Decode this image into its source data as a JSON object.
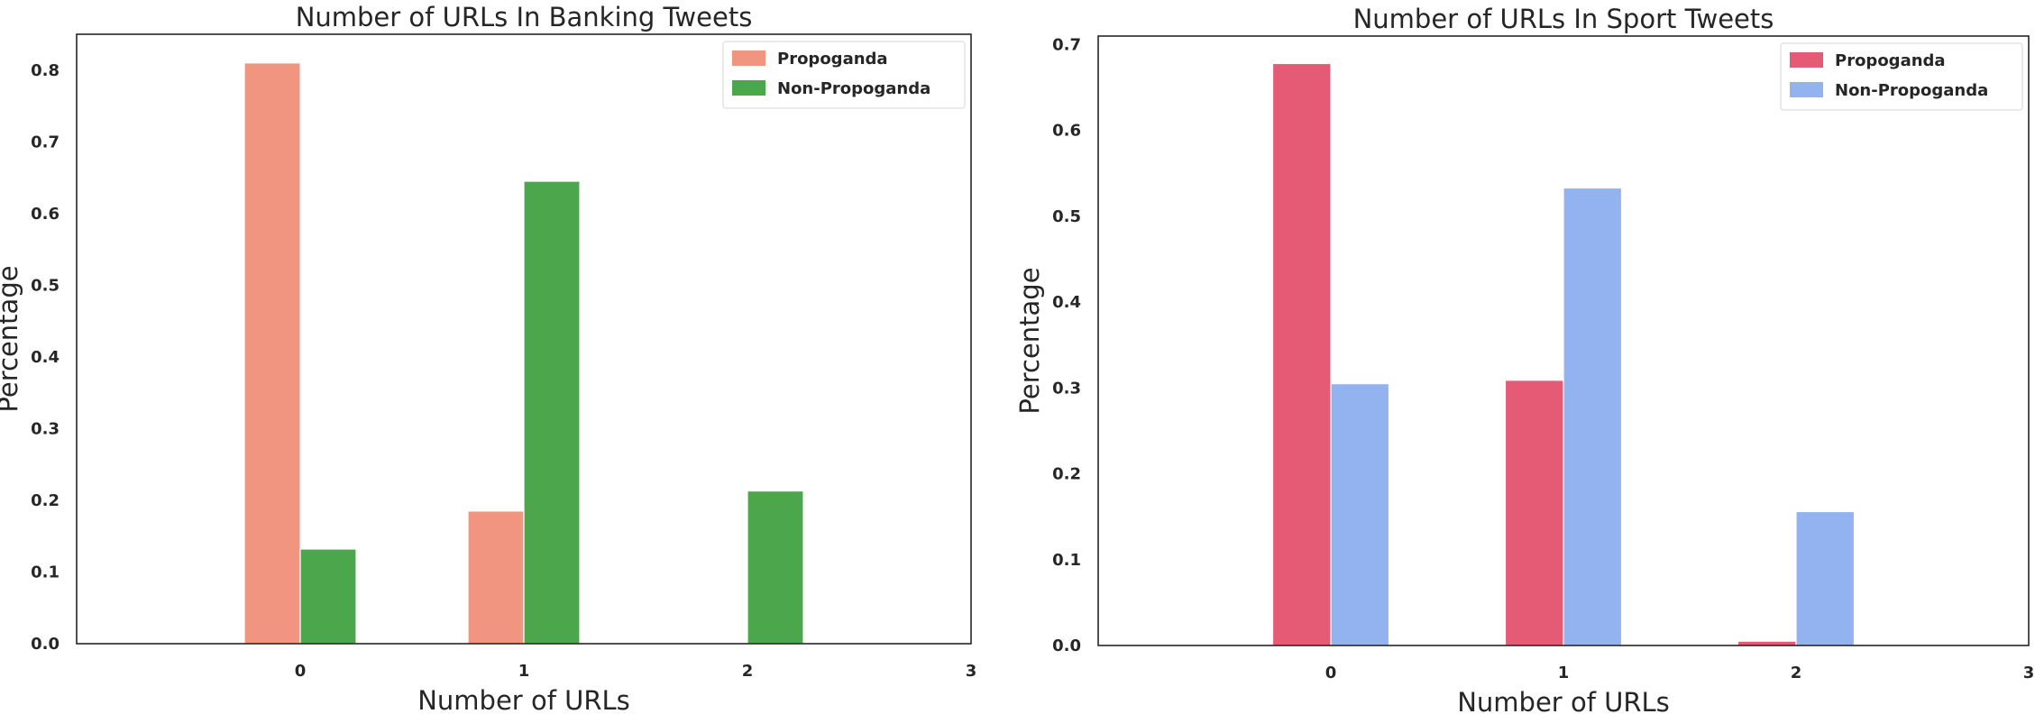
{
  "chart_data": [
    {
      "type": "bar",
      "title": "Number of URLs In Banking Tweets",
      "xlabel": "Number of URLs",
      "ylabel": "Percentage",
      "categories": [
        "0",
        "1",
        "2",
        "3"
      ],
      "xlim": [
        -1,
        3
      ],
      "ylim": [
        0,
        0.85
      ],
      "yticks": [
        "0.0",
        "0.1",
        "0.2",
        "0.3",
        "0.4",
        "0.5",
        "0.6",
        "0.7",
        "0.8"
      ],
      "grid": false,
      "legend_position": "top-right",
      "series": [
        {
          "name": "Propoganda",
          "color": "#f29580",
          "values": [
            0.81,
            0.185,
            0.0,
            0.0
          ]
        },
        {
          "name": "Non-Propoganda",
          "color": "#4ba64c",
          "values": [
            0.132,
            0.645,
            0.213,
            0.0
          ]
        }
      ]
    },
    {
      "type": "bar",
      "title": "Number of URLs In Sport Tweets",
      "xlabel": "Number of URLs",
      "ylabel": "Percentage",
      "categories": [
        "0",
        "1",
        "2",
        "3"
      ],
      "xlim": [
        -1,
        3
      ],
      "ylim": [
        0,
        0.71
      ],
      "yticks": [
        "0.0",
        "0.1",
        "0.2",
        "0.3",
        "0.4",
        "0.5",
        "0.6",
        "0.7"
      ],
      "grid": false,
      "legend_position": "top-right",
      "series": [
        {
          "name": "Propoganda",
          "color": "#e55a75",
          "values": [
            0.678,
            0.309,
            0.005,
            0.0
          ]
        },
        {
          "name": "Non-Propoganda",
          "color": "#92b3f0",
          "values": [
            0.305,
            0.533,
            0.156,
            0.0
          ]
        }
      ]
    }
  ]
}
